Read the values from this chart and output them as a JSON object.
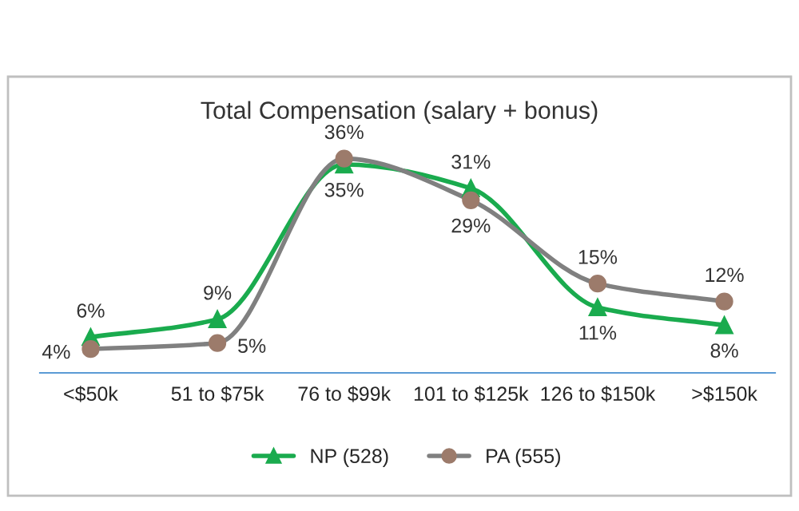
{
  "chart_data": {
    "type": "line",
    "title": "Total Compensation (salary + bonus)",
    "categories": [
      "<$50k",
      "51 to $75k",
      "76 to $99k",
      "101 to $125k",
      "126 to $150k",
      ">$150k"
    ],
    "series": [
      {
        "name": "NP (528)",
        "color": "#1aab4e",
        "marker": "triangle",
        "values": [
          6,
          9,
          35,
          31,
          11,
          8
        ],
        "value_labels": [
          "6%",
          "9%",
          "35%",
          "31%",
          "11%",
          "8%"
        ]
      },
      {
        "name": "PA (555)",
        "color": "#808080",
        "colors": [
          "#9c7b6b",
          "#9c7b6b",
          "#9c7b6b",
          "#9c7b6b",
          "#9c7b6b",
          "#9c7b6b"
        ],
        "marker": "circle",
        "values": [
          4,
          5,
          36,
          29,
          15,
          12
        ],
        "value_labels": [
          "4%",
          "5%",
          "36%",
          "29%",
          "15%",
          "12%"
        ]
      }
    ],
    "legend": "bottom",
    "grid": false
  }
}
